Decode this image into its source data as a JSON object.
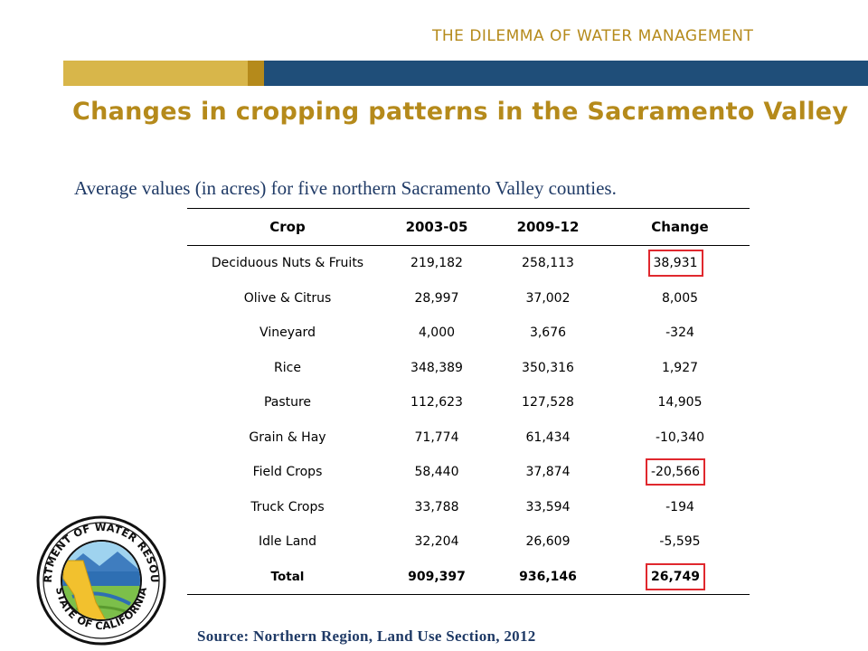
{
  "header": {
    "caption": "THE DILEMMA OF WATER MANAGEMENT",
    "colors": {
      "gold": "#d8b64a",
      "dark_gold": "#b58a1b",
      "blue": "#1f4e79"
    }
  },
  "title": "Changes in cropping patterns in the Sacramento Valley",
  "subtitle": "Average values (in acres) for five northern Sacramento Valley counties.",
  "table": {
    "headers": [
      "Crop",
      "2003-05",
      "2009-12",
      "Change"
    ],
    "rows": [
      [
        "Deciduous Nuts & Fruits",
        "219,182",
        "258,113",
        "38,931"
      ],
      [
        "Olive & Citrus",
        "28,997",
        "37,002",
        "8,005"
      ],
      [
        "Vineyard",
        "4,000",
        "3,676",
        "-324"
      ],
      [
        "Rice",
        "348,389",
        "350,316",
        "1,927"
      ],
      [
        "Pasture",
        "112,623",
        "127,528",
        "14,905"
      ],
      [
        "Grain & Hay",
        "71,774",
        "61,434",
        "-10,340"
      ],
      [
        "Field Crops",
        "58,440",
        "37,874",
        "-20,566"
      ],
      [
        "Truck Crops",
        "33,788",
        "33,594",
        "-194"
      ],
      [
        "Idle Land",
        "32,204",
        "26,609",
        "-5,595"
      ],
      [
        "Total",
        "909,397",
        "936,146",
        "26,749"
      ]
    ],
    "highlighted_changes": [
      "38,931",
      "-20,566",
      "26,749"
    ],
    "highlight_color": "#e0282e"
  },
  "seal": {
    "icon": "department-of-water-resources-seal",
    "text_top": "DEPARTMENT OF WATER RESOURCES",
    "text_bottom": "STATE OF CALIFORNIA"
  },
  "source": "Source:  Northern Region, Land Use Section, 2012"
}
